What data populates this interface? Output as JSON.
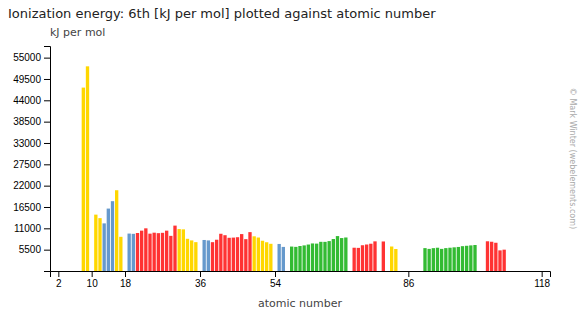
{
  "chart_data": {
    "type": "bar",
    "title": "Ionization energy: 6th [kJ per mol] plotted against atomic number",
    "x_label": "atomic number",
    "y_label": "kJ per mol",
    "annotations": [
      "© Mark Winter (webelements.com)"
    ],
    "x": [
      8,
      9,
      11,
      12,
      13,
      14,
      15,
      16,
      17,
      19,
      20,
      21,
      22,
      23,
      24,
      25,
      26,
      27,
      28,
      29,
      30,
      31,
      32,
      33,
      34,
      35,
      37,
      38,
      39,
      40,
      41,
      42,
      43,
      44,
      45,
      46,
      47,
      48,
      49,
      50,
      51,
      52,
      53,
      55,
      56,
      58,
      59,
      60,
      61,
      62,
      63,
      64,
      65,
      66,
      67,
      68,
      69,
      70,
      71,
      73,
      74,
      75,
      76,
      77,
      78,
      80,
      82,
      83,
      90,
      91,
      92,
      93,
      94,
      95,
      96,
      97,
      98,
      99,
      100,
      101,
      102,
      105,
      106,
      107,
      108,
      109
    ],
    "values": [
      47277,
      52760,
      14530,
      13629,
      12278,
      16091,
      17995,
      20820,
      8812,
      9649,
      9581,
      9795,
      10400,
      11000,
      9625,
      9874,
      9754,
      9840,
      10400,
      9058,
      11700,
      10810,
      10735,
      8300,
      7883,
      7436,
      7996,
      7884,
      7430,
      8060,
      9596,
      9230,
      8560,
      8610,
      8710,
      9516,
      8213,
      10020,
      8944,
      8628,
      7800,
      7410,
      7010,
      6970,
      6210,
      6300,
      6220,
      6440,
      6600,
      6820,
      7100,
      7060,
      7520,
      7510,
      7710,
      8240,
      9000,
      8490,
      8640,
      6000,
      5960,
      6640,
      6830,
      7030,
      7640,
      7610,
      6314,
      5670,
      5900,
      5700,
      5890,
      6000,
      5700,
      5900,
      6000,
      6100,
      6200,
      6400,
      6500,
      6600,
      6700,
      7660,
      7540,
      7280,
      5320,
      5500
    ],
    "colors": [
      "#FFD700",
      "#FFD700",
      "#FFD700",
      "#FFD700",
      "#6699CC",
      "#6699CC",
      "#6699CC",
      "#FFD700",
      "#FFD700",
      "#6699CC",
      "#6699CC",
      "#FF3333",
      "#FF3333",
      "#FF3333",
      "#FF3333",
      "#FF3333",
      "#FF3333",
      "#FF3333",
      "#FF3333",
      "#FF3333",
      "#FF3333",
      "#FFD700",
      "#FFD700",
      "#FFD700",
      "#FFD700",
      "#FFD700",
      "#6699CC",
      "#6699CC",
      "#FF3333",
      "#FF3333",
      "#FF3333",
      "#FF3333",
      "#FF3333",
      "#FF3333",
      "#FF3333",
      "#FF3333",
      "#FF3333",
      "#FF3333",
      "#FFD700",
      "#FFD700",
      "#FFD700",
      "#FFD700",
      "#FFD700",
      "#6699CC",
      "#6699CC",
      "#33BB33",
      "#33BB33",
      "#33BB33",
      "#33BB33",
      "#33BB33",
      "#33BB33",
      "#33BB33",
      "#33BB33",
      "#33BB33",
      "#33BB33",
      "#33BB33",
      "#33BB33",
      "#33BB33",
      "#33BB33",
      "#FF3333",
      "#FF3333",
      "#FF3333",
      "#FF3333",
      "#FF3333",
      "#FF3333",
      "#FF3333",
      "#FFD700",
      "#FFD700",
      "#33BB33",
      "#33BB33",
      "#33BB33",
      "#33BB33",
      "#33BB33",
      "#33BB33",
      "#33BB33",
      "#33BB33",
      "#33BB33",
      "#33BB33",
      "#33BB33",
      "#33BB33",
      "#33BB33",
      "#FF3333",
      "#FF3333",
      "#FF3333",
      "#FF3333",
      "#FF3333"
    ],
    "xlim": [
      0,
      120
    ],
    "xticks": [
      2,
      10,
      18,
      36,
      54,
      86,
      118
    ],
    "ylim": [
      0,
      58000
    ],
    "yticks": [
      5500,
      11000,
      16500,
      22000,
      27500,
      33000,
      38500,
      44000,
      49500,
      55000
    ],
    "grid": false
  }
}
